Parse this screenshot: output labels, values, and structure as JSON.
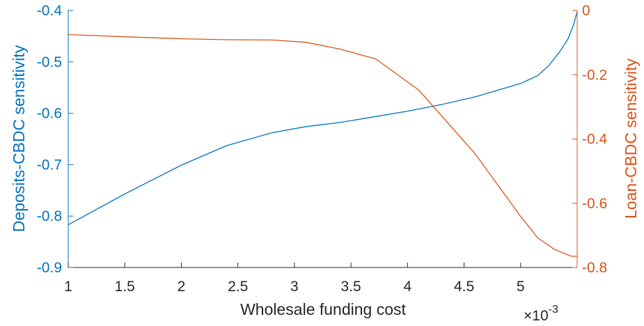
{
  "chart_data": {
    "type": "line",
    "xlabel": "Wholesale funding cost",
    "x_exponent_label": "×10",
    "x_exponent_power": "-3",
    "xlim": [
      1,
      5.5
    ],
    "x_ticks": [
      1,
      1.5,
      2,
      2.5,
      3,
      3.5,
      4,
      4.5,
      5
    ],
    "x_tick_labels": [
      "1",
      "1.5",
      "2",
      "2.5",
      "3",
      "3.5",
      "4",
      "4.5",
      "5"
    ],
    "y_left": {
      "label": "Deposits-CBDC sensitivity",
      "ylim": [
        -0.9,
        -0.4
      ],
      "ticks": [
        -0.9,
        -0.8,
        -0.7,
        -0.6,
        -0.5,
        -0.4
      ],
      "tick_labels": [
        "-0.9",
        "-0.8",
        "-0.7",
        "-0.6",
        "-0.5",
        "-0.4"
      ],
      "color": "#0072BD"
    },
    "y_right": {
      "label": "Loan-CBDC sensitivity",
      "ylim": [
        -0.8,
        0
      ],
      "ticks": [
        -0.8,
        -0.6,
        -0.4,
        -0.2,
        0
      ],
      "tick_labels": [
        "-0.8",
        "-0.6",
        "-0.4",
        "-0.2",
        "0"
      ],
      "color": "#D95319"
    },
    "grid": false,
    "series": [
      {
        "axis": "left",
        "color": "#0072BD",
        "x": [
          1.0,
          1.5,
          2.0,
          2.4,
          2.8,
          3.1,
          3.4,
          3.7,
          4.0,
          4.3,
          4.6,
          5.0,
          5.15,
          5.25,
          5.35,
          5.42,
          5.47,
          5.5
        ],
        "y": [
          -0.817,
          -0.757,
          -0.701,
          -0.663,
          -0.638,
          -0.626,
          -0.618,
          -0.607,
          -0.596,
          -0.583,
          -0.568,
          -0.542,
          -0.527,
          -0.507,
          -0.479,
          -0.455,
          -0.427,
          -0.402
        ]
      },
      {
        "axis": "right",
        "color": "#D95319",
        "x": [
          1.0,
          1.5,
          2.0,
          2.4,
          2.8,
          3.1,
          3.4,
          3.72,
          4.1,
          4.6,
          5.0,
          5.15,
          5.3,
          5.45,
          5.5
        ],
        "y": [
          -0.075,
          -0.082,
          -0.088,
          -0.091,
          -0.092,
          -0.099,
          -0.12,
          -0.151,
          -0.248,
          -0.447,
          -0.641,
          -0.707,
          -0.744,
          -0.765,
          -0.765
        ]
      }
    ]
  }
}
